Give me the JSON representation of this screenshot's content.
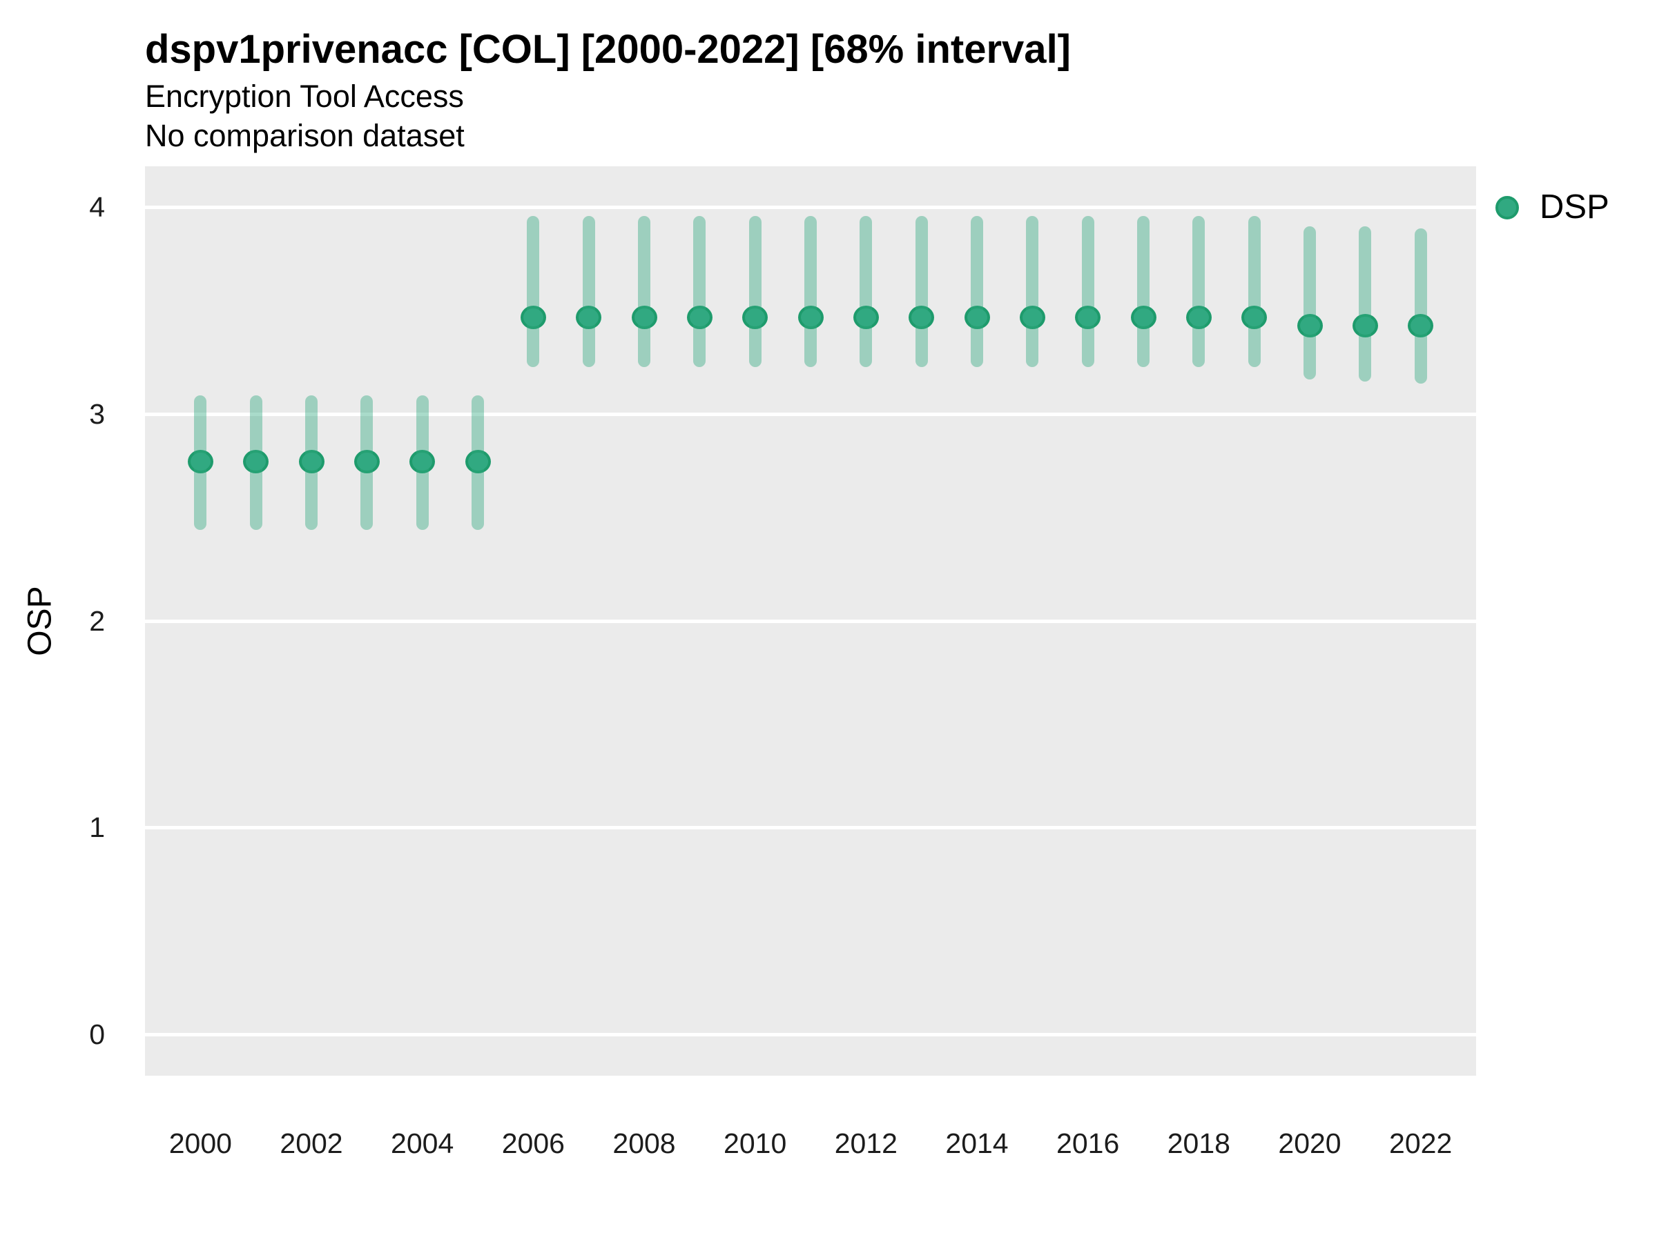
{
  "header": {
    "title": "dspv1privenacc [COL] [2000-2022] [68% interval]",
    "subtitle": "Encryption Tool Access",
    "note": "No comparison dataset"
  },
  "legend": {
    "label": "DSP"
  },
  "colors": {
    "point_fill": "#31A981",
    "point_stroke": "#1E9B6C",
    "interval_rgba": "rgba(49,169,129,0.42)",
    "panel_bg": "#EBEBEB",
    "gridline": "#FFFFFF"
  },
  "y_axis": {
    "label": "OSP",
    "ticks": [
      "4",
      "3",
      "2",
      "1",
      "0"
    ]
  },
  "x_axis": {
    "ticks": [
      "2000",
      "2002",
      "2004",
      "2006",
      "2008",
      "2010",
      "2012",
      "2014",
      "2016",
      "2018",
      "2020",
      "2022"
    ]
  },
  "chart_data": {
    "type": "scatter",
    "title": "dspv1privenacc [COL] [2000-2022] [68% interval]",
    "subtitle": "Encryption Tool Access",
    "note": "No comparison dataset",
    "ylabel": "OSP",
    "xlabel": "",
    "interval_level": "68%",
    "grid": "major-y-only",
    "legend_position": "right",
    "xlim": [
      1999,
      2023
    ],
    "ylim": [
      -0.2,
      4.2
    ],
    "ytick_values": [
      0,
      1,
      2,
      3,
      4
    ],
    "x": [
      2000,
      2001,
      2002,
      2003,
      2004,
      2005,
      2006,
      2007,
      2008,
      2009,
      2010,
      2011,
      2012,
      2013,
      2014,
      2015,
      2016,
      2017,
      2018,
      2019,
      2020,
      2021,
      2022
    ],
    "series": [
      {
        "name": "DSP",
        "mean": [
          2.77,
          2.77,
          2.77,
          2.77,
          2.77,
          2.77,
          3.47,
          3.47,
          3.47,
          3.47,
          3.47,
          3.47,
          3.47,
          3.47,
          3.47,
          3.47,
          3.47,
          3.47,
          3.47,
          3.47,
          3.43,
          3.43,
          3.43
        ],
        "lo": [
          2.44,
          2.44,
          2.44,
          2.44,
          2.44,
          2.44,
          3.23,
          3.23,
          3.23,
          3.23,
          3.23,
          3.23,
          3.23,
          3.23,
          3.23,
          3.23,
          3.23,
          3.23,
          3.23,
          3.23,
          3.17,
          3.16,
          3.15
        ],
        "hi": [
          3.09,
          3.09,
          3.09,
          3.09,
          3.09,
          3.09,
          3.96,
          3.96,
          3.96,
          3.96,
          3.96,
          3.96,
          3.96,
          3.96,
          3.96,
          3.96,
          3.96,
          3.96,
          3.96,
          3.96,
          3.91,
          3.91,
          3.9
        ]
      }
    ]
  }
}
